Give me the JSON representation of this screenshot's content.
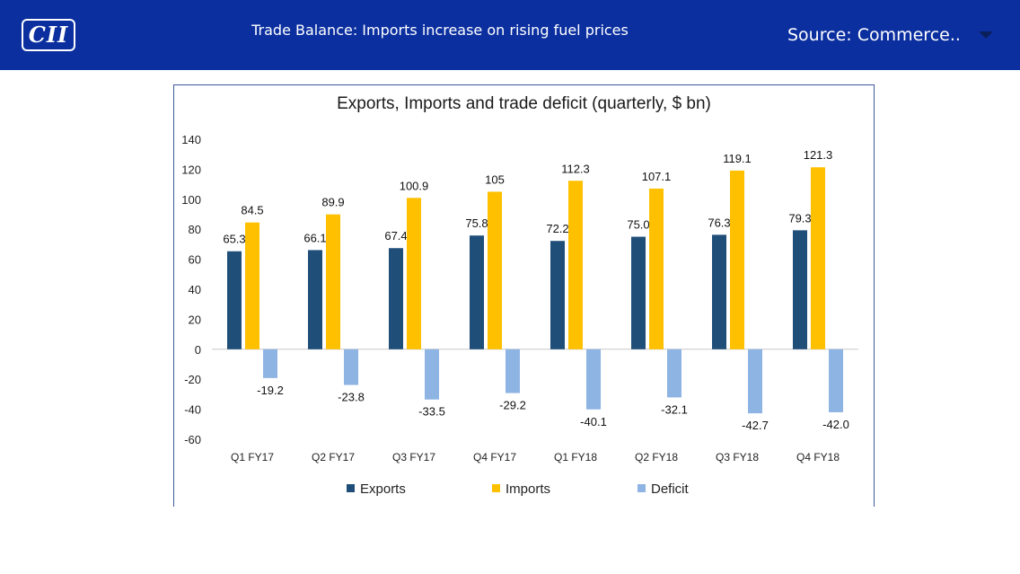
{
  "header": {
    "logo_text": "CII",
    "headline": "Trade Balance: Imports increase on rising fuel prices",
    "source": "Source: Commerce..",
    "dropdown_icon": "chevron-down-icon",
    "bar_color": "#0b2f9f"
  },
  "chart_data": {
    "type": "bar",
    "title": "Exports, Imports and trade deficit (quarterly, $ bn)",
    "xlabel": "",
    "ylabel": "",
    "categories": [
      "Q1 FY17",
      "Q2 FY17",
      "Q3 FY17",
      "Q4 FY17",
      "Q1 FY18",
      "Q2 FY18",
      "Q3 FY18",
      "Q4 FY18"
    ],
    "series": [
      {
        "name": "Exports",
        "color": "#1f4e79",
        "values": [
          65.3,
          66.1,
          67.4,
          75.8,
          72.2,
          75.0,
          76.3,
          79.3
        ],
        "labels": [
          "65.3",
          "66.1",
          "67.4",
          "75.8",
          "72.2",
          "75.0",
          "76.3",
          "79.3"
        ]
      },
      {
        "name": "Imports",
        "color": "#ffc000",
        "values": [
          84.5,
          89.9,
          100.9,
          105,
          112.3,
          107.1,
          119.1,
          121.3
        ],
        "labels": [
          "84.5",
          "89.9",
          "100.9",
          "105",
          "112.3",
          "107.1",
          "119.1",
          "121.3"
        ]
      },
      {
        "name": "Deficit",
        "color": "#8eb4e3",
        "values": [
          -19.2,
          -23.8,
          -33.5,
          -29.2,
          -40.1,
          -32.1,
          -42.7,
          -42.0
        ],
        "labels": [
          "-19.2",
          "-23.8",
          "-33.5",
          "-29.2",
          "-40.1",
          "-32.1",
          "-42.7",
          "-42.0"
        ]
      }
    ],
    "ylim": [
      -60,
      140
    ],
    "yticks": [
      "140",
      "120",
      "100",
      "80",
      "60",
      "40",
      "20",
      "0",
      "-20",
      "-40",
      "-60"
    ],
    "grid": false,
    "legend": "bottom"
  }
}
